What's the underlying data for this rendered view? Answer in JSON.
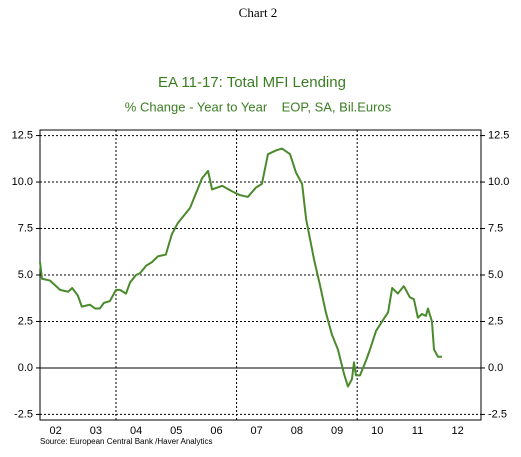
{
  "chart_data": {
    "type": "line",
    "header": "Chart 2",
    "title": "EA 11-17: Total MFI Lending",
    "subtitle": "% Change - Year to Year    EOP, SA, Bil.Euros",
    "source": "Source:  European Central Bank /Haver Analytics",
    "xlim": [
      2002.11,
      2013.08
    ],
    "ylim": [
      -2.8,
      12.8
    ],
    "yticks": [
      -2.5,
      {
        "value": 0,
        "label": "0.0"
      },
      2.5,
      {
        "value": 5,
        "label": "5.0"
      },
      7.5,
      {
        "value": 10,
        "label": "10.0"
      },
      12.5
    ],
    "xticks": [
      {
        "value": 2002.5,
        "label": "02"
      },
      {
        "value": 2003.5,
        "label": "03"
      },
      {
        "value": 2004.5,
        "label": "04"
      },
      {
        "value": 2005.5,
        "label": "05"
      },
      {
        "value": 2006.5,
        "label": "06"
      },
      {
        "value": 2007.5,
        "label": "07"
      },
      {
        "value": 2008.5,
        "label": "08"
      },
      {
        "value": 2009.5,
        "label": "09"
      },
      {
        "value": 2010.5,
        "label": "10"
      },
      {
        "value": 2011.5,
        "label": "11"
      },
      {
        "value": 2012.5,
        "label": "12"
      }
    ],
    "xgrid": [
      2004,
      2007,
      2010
    ],
    "grid": true,
    "x": [
      2002.11,
      2002.16,
      2002.36,
      2002.61,
      2002.81,
      2002.91,
      2003.05,
      2003.15,
      2003.35,
      2003.48,
      2003.6,
      2003.7,
      2003.85,
      2004.0,
      2004.1,
      2004.25,
      2004.35,
      2004.5,
      2004.6,
      2004.75,
      2004.9,
      2005.04,
      2005.24,
      2005.39,
      2005.54,
      2005.69,
      2005.84,
      2005.99,
      2006.14,
      2006.29,
      2006.39,
      2006.64,
      2006.89,
      2007.08,
      2007.28,
      2007.48,
      2007.63,
      2007.78,
      2007.98,
      2008.13,
      2008.33,
      2008.48,
      2008.63,
      2008.73,
      2008.93,
      2009.07,
      2009.22,
      2009.37,
      2009.52,
      2009.67,
      2009.77,
      2009.87,
      2009.92,
      2009.97,
      2010.07,
      2010.22,
      2010.32,
      2010.47,
      2010.62,
      2010.77,
      2010.87,
      2011.01,
      2011.16,
      2011.31,
      2011.41,
      2011.51,
      2011.61,
      2011.71,
      2011.76,
      2011.86,
      2011.91,
      2012.01,
      2012.11
    ],
    "series": [
      {
        "color": "#4a8a2c",
        "values": [
          5.7,
          4.8,
          4.7,
          4.2,
          4.1,
          4.3,
          3.9,
          3.3,
          3.4,
          3.2,
          3.2,
          3.5,
          3.6,
          4.2,
          4.2,
          4.0,
          4.6,
          5.0,
          5.1,
          5.5,
          5.7,
          6.0,
          6.1,
          7.2,
          7.8,
          8.2,
          8.6,
          9.4,
          10.2,
          10.6,
          9.6,
          9.8,
          9.5,
          9.3,
          9.2,
          9.7,
          9.9,
          11.5,
          11.7,
          11.8,
          11.5,
          10.5,
          9.9,
          8.0,
          5.8,
          4.5,
          3.0,
          1.8,
          1.0,
          -0.3,
          -1.0,
          -0.6,
          0.3,
          -0.4,
          -0.4,
          0.4,
          1.0,
          2.0,
          2.5,
          3.0,
          4.3,
          4.0,
          4.4,
          3.8,
          3.7,
          2.7,
          2.9,
          2.8,
          3.2,
          2.5,
          1.0,
          0.6,
          0.6
        ]
      }
    ]
  }
}
